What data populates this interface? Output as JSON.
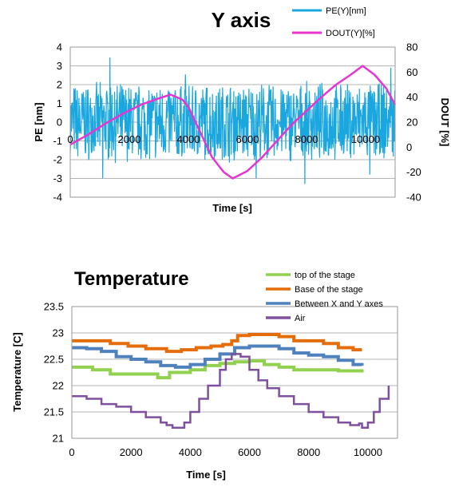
{
  "chart_data": [
    {
      "type": "line",
      "title": "Y axis",
      "xlabel": "Time [s]",
      "ylabel": "PE [nm]",
      "y2label": "DOUT [%]",
      "xlim": [
        0,
        11000
      ],
      "ylim": [
        -4,
        4
      ],
      "y2lim": [
        -40,
        80
      ],
      "x_ticks": [
        0,
        2000,
        4000,
        6000,
        8000,
        10000
      ],
      "x_tick_labels": [
        "0",
        "2000",
        "4000",
        "6000",
        "8000",
        "10000"
      ],
      "y_ticks": [
        -4,
        -3,
        -2,
        -1,
        0,
        1,
        2,
        3,
        4
      ],
      "y_tick_labels": [
        "-4",
        "-3",
        "-2",
        "-1",
        "0",
        "1",
        "2",
        "3",
        "4"
      ],
      "y2_ticks": [
        -40,
        -20,
        0,
        20,
        40,
        60,
        80
      ],
      "y2_tick_labels": [
        "-40",
        "-20",
        "0",
        "20",
        "40",
        "60",
        "80"
      ],
      "grid": true,
      "legend_position": "top-right",
      "series": [
        {
          "name": "PE(Y)[nm]",
          "color": "#1aa7e0",
          "axis": "left",
          "noise_envelope": {
            "typical_range": [
              -2.0,
              2.0
            ],
            "peaks": [
              {
                "x": 1350,
                "y": 3.45
              },
              {
                "x": 10850,
                "y": 2.9
              },
              {
                "x": 3900,
                "y": 2.55
              },
              {
                "x": 7950,
                "y": -3.3
              },
              {
                "x": 6300,
                "y": -3.0
              },
              {
                "x": 10150,
                "y": -2.8
              },
              {
                "x": 1100,
                "y": -3.0
              }
            ]
          }
        },
        {
          "name": "DOUT(Y)[%]",
          "color": "#e636d2",
          "axis": "right",
          "x": [
            0,
            600,
            1200,
            1800,
            2400,
            3000,
            3400,
            3800,
            4000,
            4400,
            4800,
            5200,
            5500,
            6000,
            6500,
            7000,
            7500,
            8000,
            8500,
            9000,
            9500,
            9900,
            10300,
            10700,
            11000
          ],
          "y": [
            2,
            10,
            19,
            27,
            34,
            39,
            42,
            38,
            32,
            12,
            -8,
            -20,
            -25,
            -19,
            -8,
            5,
            18,
            29,
            40,
            50,
            58,
            65,
            58,
            47,
            34
          ]
        }
      ]
    },
    {
      "type": "line",
      "title": "Temperature",
      "xlabel": "Time [s]",
      "ylabel": "Temperature [C]",
      "xlim": [
        0,
        11000
      ],
      "ylim": [
        21,
        23.5
      ],
      "x_ticks": [
        0,
        2000,
        4000,
        6000,
        8000,
        10000
      ],
      "x_tick_labels": [
        "0",
        "2000",
        "4000",
        "6000",
        "8000",
        "10000"
      ],
      "y_ticks": [
        21,
        21.5,
        22,
        22.5,
        23,
        23.5
      ],
      "y_tick_labels": [
        "21",
        "21.5",
        "22",
        "22.5",
        "23",
        "23.5"
      ],
      "grid": true,
      "legend_position": "top-right",
      "series": [
        {
          "name": "top of the stage",
          "color": "#92d050",
          "x": [
            0,
            400,
            700,
            1200,
            1300,
            2800,
            2900,
            3200,
            3300,
            4000,
            4500,
            5000,
            5500,
            6000,
            6500,
            7000,
            7500,
            8000,
            9000,
            9800
          ],
          "y": [
            22.35,
            22.35,
            22.3,
            22.3,
            22.22,
            22.22,
            22.15,
            22.15,
            22.25,
            22.3,
            22.38,
            22.42,
            22.45,
            22.47,
            22.4,
            22.35,
            22.3,
            22.3,
            22.28,
            22.25
          ]
        },
        {
          "name": "Base of the stage",
          "color": "#e46c0a",
          "x": [
            0,
            800,
            1300,
            1900,
            2500,
            3200,
            3700,
            4200,
            4700,
            5100,
            5400,
            5600,
            6000,
            6500,
            7000,
            7500,
            8000,
            8500,
            9000,
            9500,
            9800
          ],
          "y": [
            22.85,
            22.85,
            22.8,
            22.75,
            22.7,
            22.65,
            22.68,
            22.72,
            22.75,
            22.78,
            22.85,
            22.95,
            22.97,
            22.97,
            22.93,
            22.85,
            22.85,
            22.8,
            22.72,
            22.68,
            22.68
          ]
        },
        {
          "name": "Between X and Y axes",
          "color": "#4f81bd",
          "x": [
            0,
            500,
            1000,
            1500,
            2000,
            2500,
            3000,
            3500,
            4000,
            4500,
            5000,
            5500,
            6000,
            6500,
            7000,
            7500,
            8000,
            8500,
            9000,
            9500,
            9800
          ],
          "y": [
            22.72,
            22.7,
            22.65,
            22.55,
            22.5,
            22.45,
            22.38,
            22.35,
            22.4,
            22.5,
            22.6,
            22.72,
            22.75,
            22.75,
            22.7,
            22.62,
            22.58,
            22.55,
            22.48,
            22.4,
            22.38
          ]
        },
        {
          "name": "Air",
          "color": "#7e509e",
          "x": [
            0,
            300,
            500,
            1000,
            1500,
            2000,
            2500,
            3000,
            3200,
            3400,
            3600,
            3800,
            4000,
            4300,
            4600,
            5000,
            5200,
            5400,
            5700,
            6000,
            6300,
            6600,
            7000,
            7500,
            8000,
            8500,
            9000,
            9400,
            9700,
            9800,
            10000,
            10200,
            10400,
            10700
          ],
          "y": [
            21.8,
            21.8,
            21.75,
            21.65,
            21.6,
            21.5,
            21.4,
            21.3,
            21.25,
            21.2,
            21.2,
            21.3,
            21.5,
            21.75,
            22.0,
            22.3,
            22.5,
            22.6,
            22.55,
            22.3,
            22.1,
            21.95,
            21.8,
            21.65,
            21.5,
            21.4,
            21.3,
            21.25,
            21.28,
            21.2,
            21.3,
            21.5,
            21.75,
            22.0
          ]
        }
      ]
    }
  ]
}
